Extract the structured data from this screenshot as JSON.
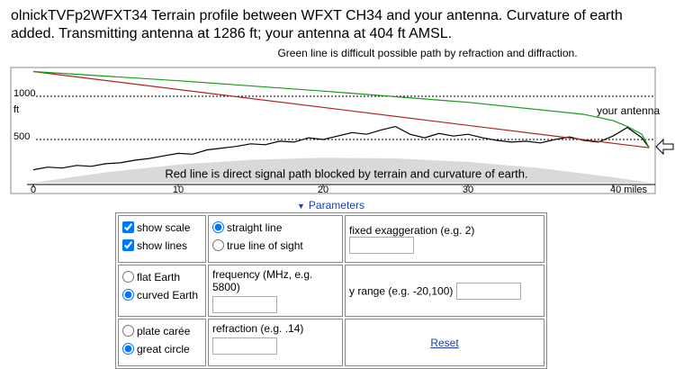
{
  "header": {
    "title": "olnickTVFp2WFXT34  Terrain profile between WFXT CH34 and your antenna. Curvature of earth added. Transmitting antenna at 1286 ft; your antenna at 404 ft AMSL."
  },
  "chart_data": {
    "type": "line",
    "green_note": "Green line is difficult possible path by refraction and diffraction.",
    "red_note": "Red line is direct signal path blocked by terrain and curvature of earth.",
    "antenna_label": "your antenna",
    "y_unit": "ft",
    "xlim": [
      0,
      42.9
    ],
    "ylim": [
      0,
      1330
    ],
    "xticks": [
      0,
      10,
      20,
      30,
      {
        "value": 40,
        "label": "40 miles"
      }
    ],
    "yticks": [
      500,
      1000
    ],
    "grid": true,
    "series": [
      {
        "color": "#d9d9d9",
        "area": true,
        "x": [
          0,
          5,
          10,
          15,
          20,
          25,
          30,
          35,
          40,
          42.5
        ],
        "values": [
          0,
          120,
          209,
          265,
          289,
          281,
          241,
          168,
          64,
          0
        ]
      },
      {
        "color": "#000000",
        "x": [
          0,
          1,
          2,
          3,
          4,
          5,
          6,
          7,
          8,
          9,
          10,
          11,
          12,
          13,
          14,
          15,
          16,
          17,
          18,
          19,
          20,
          21,
          22,
          23,
          24,
          25,
          26,
          27,
          28,
          29,
          30,
          31,
          32,
          33,
          34,
          35,
          36,
          37,
          38,
          39,
          40,
          41,
          42,
          42.5
        ],
        "values": [
          150,
          180,
          170,
          200,
          190,
          220,
          230,
          260,
          280,
          310,
          340,
          330,
          380,
          400,
          420,
          450,
          440,
          480,
          470,
          520,
          500,
          540,
          580,
          560,
          610,
          650,
          560,
          520,
          570,
          540,
          560,
          520,
          490,
          470,
          480,
          460,
          500,
          530,
          490,
          470,
          540,
          640,
          520,
          404
        ]
      },
      {
        "color": "#b22222",
        "x": [
          0,
          42.5
        ],
        "values": [
          1286,
          404
        ]
      },
      {
        "color": "#1a9a1a",
        "x": [
          0,
          10,
          20,
          30,
          38,
          40,
          41,
          42,
          42.5
        ],
        "values": [
          1286,
          1180,
          1060,
          930,
          790,
          720,
          650,
          560,
          404
        ]
      }
    ]
  },
  "parameters": {
    "toggle": "Parameters",
    "display": [
      {
        "label": "show scale",
        "checked": true
      },
      {
        "label": "show lines",
        "checked": true
      }
    ],
    "line_type": [
      {
        "label": "straight line",
        "checked": true
      },
      {
        "label": "true line of sight",
        "checked": false
      }
    ],
    "exaggeration_label": "fixed exaggeration (e.g. 2)",
    "earth": [
      {
        "label": "flat Earth",
        "checked": false
      },
      {
        "label": "curved Earth",
        "checked": true
      }
    ],
    "frequency_label": "frequency (MHz, e.g. 5800)",
    "y_range_label": "y range (e.g. -20,100)",
    "projection": [
      {
        "label": "plate carée",
        "checked": false
      },
      {
        "label": "great circle",
        "checked": true
      }
    ],
    "refraction_label": "refraction (e.g. .14)",
    "reset": "Reset"
  }
}
